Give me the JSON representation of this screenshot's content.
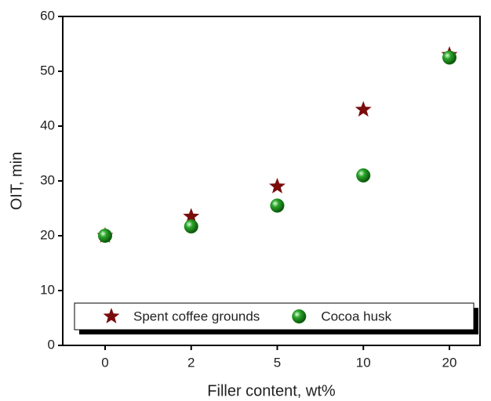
{
  "chart_data": {
    "type": "scatter",
    "x_label": "Filler content, wt%",
    "y_label": "OIT, min",
    "categories": [
      "0",
      "2",
      "5",
      "10",
      "20"
    ],
    "series": [
      {
        "name": "Spent coffee grounds",
        "color": "#7a0c0c",
        "marker": "star",
        "values": [
          20,
          23.5,
          29,
          43,
          53
        ]
      },
      {
        "name": "Cocoa husk",
        "color": "#1a8c1a",
        "marker": "sphere",
        "values": [
          20,
          21.7,
          25.5,
          31,
          52.5
        ]
      }
    ],
    "ylim": [
      0,
      60
    ],
    "yticks": [
      0,
      10,
      20,
      30,
      40,
      50,
      60
    ],
    "legend": "bottom"
  }
}
